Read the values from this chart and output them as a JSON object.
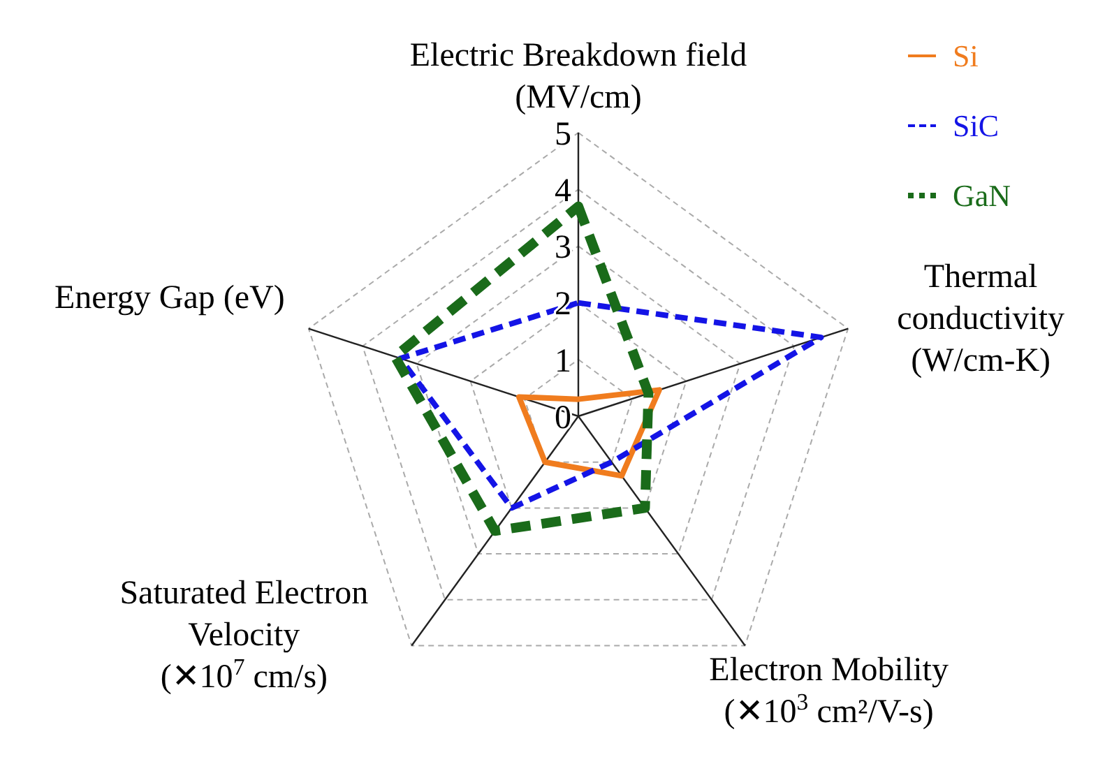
{
  "chart_data": {
    "type": "radar",
    "categories": [
      "Electric Breakdown field\n(MV/cm)",
      "Thermal\nconductivity\n(W/cm-K)",
      "Electron Mobility\n(✕10$^{3}$ cm²/V-s)",
      "Saturated Electron\nVelocity\n(✕10$^{7}$ cm/s)",
      "Energy Gap (eV)"
    ],
    "series": [
      {
        "name": "Si",
        "color": "#f07c1e",
        "line_style": "solid",
        "values": [
          0.3,
          1.5,
          1.3,
          1.0,
          1.1
        ]
      },
      {
        "name": "SiC",
        "color": "#1414e6",
        "line_style": "dashed",
        "values": [
          2,
          4.5,
          1.0,
          2.0,
          3.3
        ]
      },
      {
        "name": "GaN",
        "color": "#1a6b1a",
        "line_style": "dotted",
        "values": [
          3.7,
          1.3,
          2.0,
          2.5,
          3.4
        ]
      }
    ],
    "ylim": [
      0,
      5
    ],
    "yticks": [
      0,
      1,
      2,
      3,
      4,
      5
    ],
    "grid": true,
    "legend": "top right",
    "marker": "none"
  }
}
